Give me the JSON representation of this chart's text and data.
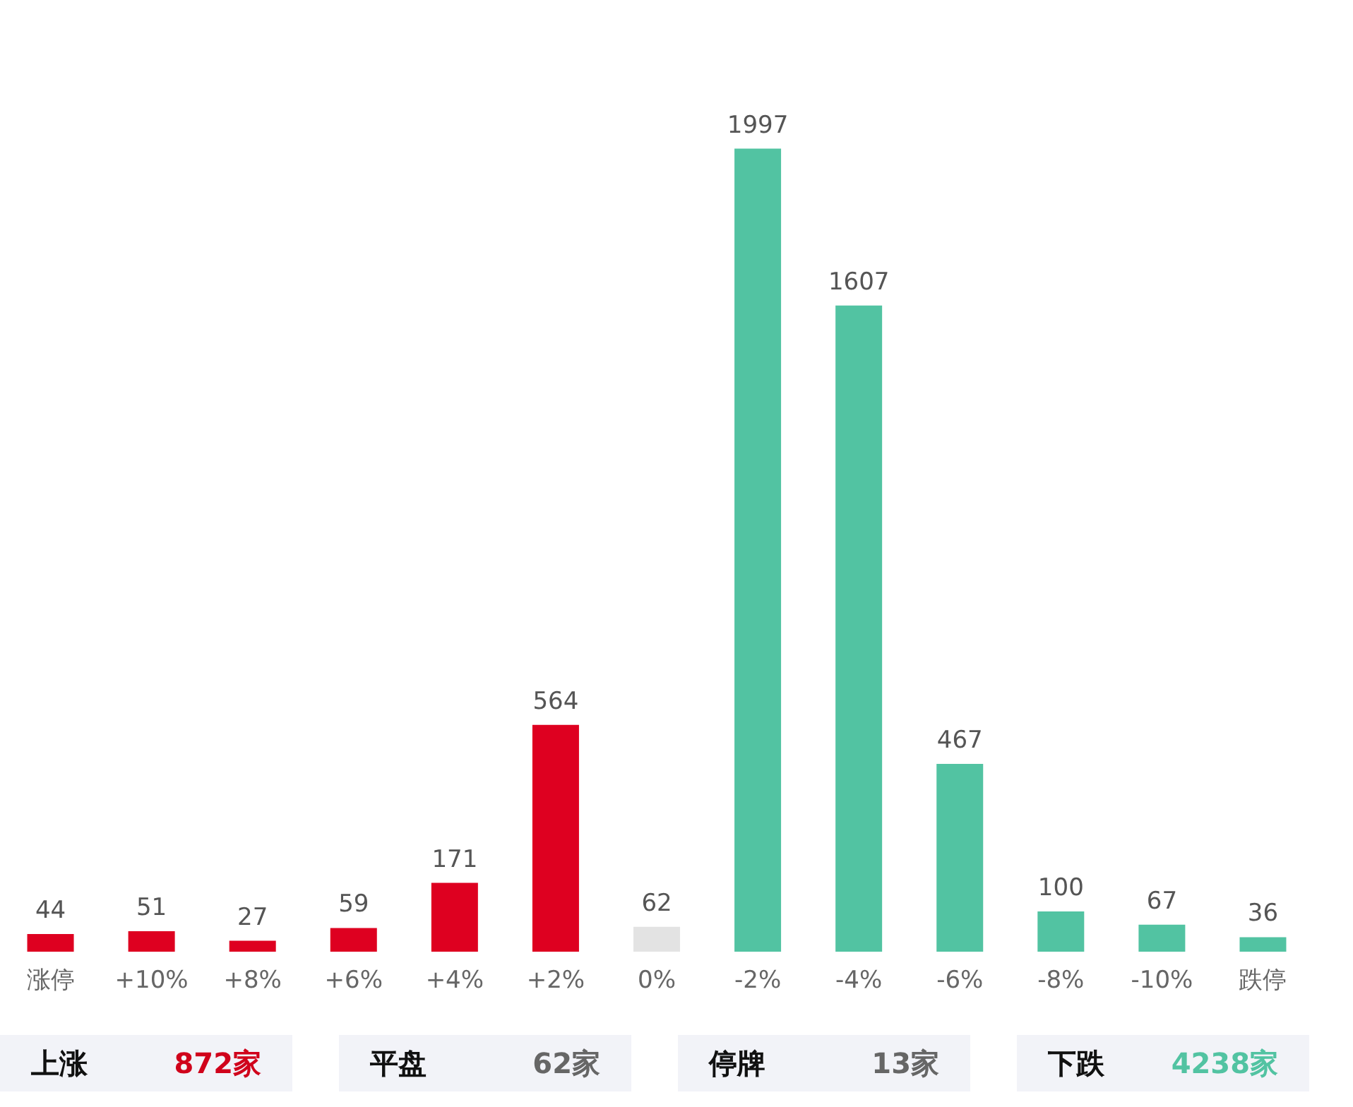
{
  "chart_data": {
    "type": "bar",
    "categories": [
      "涨停",
      "+10%",
      "+8%",
      "+6%",
      "+4%",
      "+2%",
      "0%",
      "-2%",
      "-4%",
      "-6%",
      "-8%",
      "-10%",
      "跌停"
    ],
    "values": [
      44,
      51,
      27,
      59,
      171,
      564,
      62,
      1997,
      1607,
      467,
      100,
      67,
      36
    ],
    "colors": [
      "#de0020",
      "#de0020",
      "#de0020",
      "#de0020",
      "#de0020",
      "#de0020",
      "#e3e3e3",
      "#52c3a2",
      "#52c3a2",
      "#52c3a2",
      "#52c3a2",
      "#52c3a2",
      "#52c3a2"
    ],
    "data_labels": true,
    "annotations": [
      "上涨",
      "872家",
      "平盘",
      "62家",
      "停牌",
      "13家",
      "下跌",
      "4238家"
    ]
  }
}
